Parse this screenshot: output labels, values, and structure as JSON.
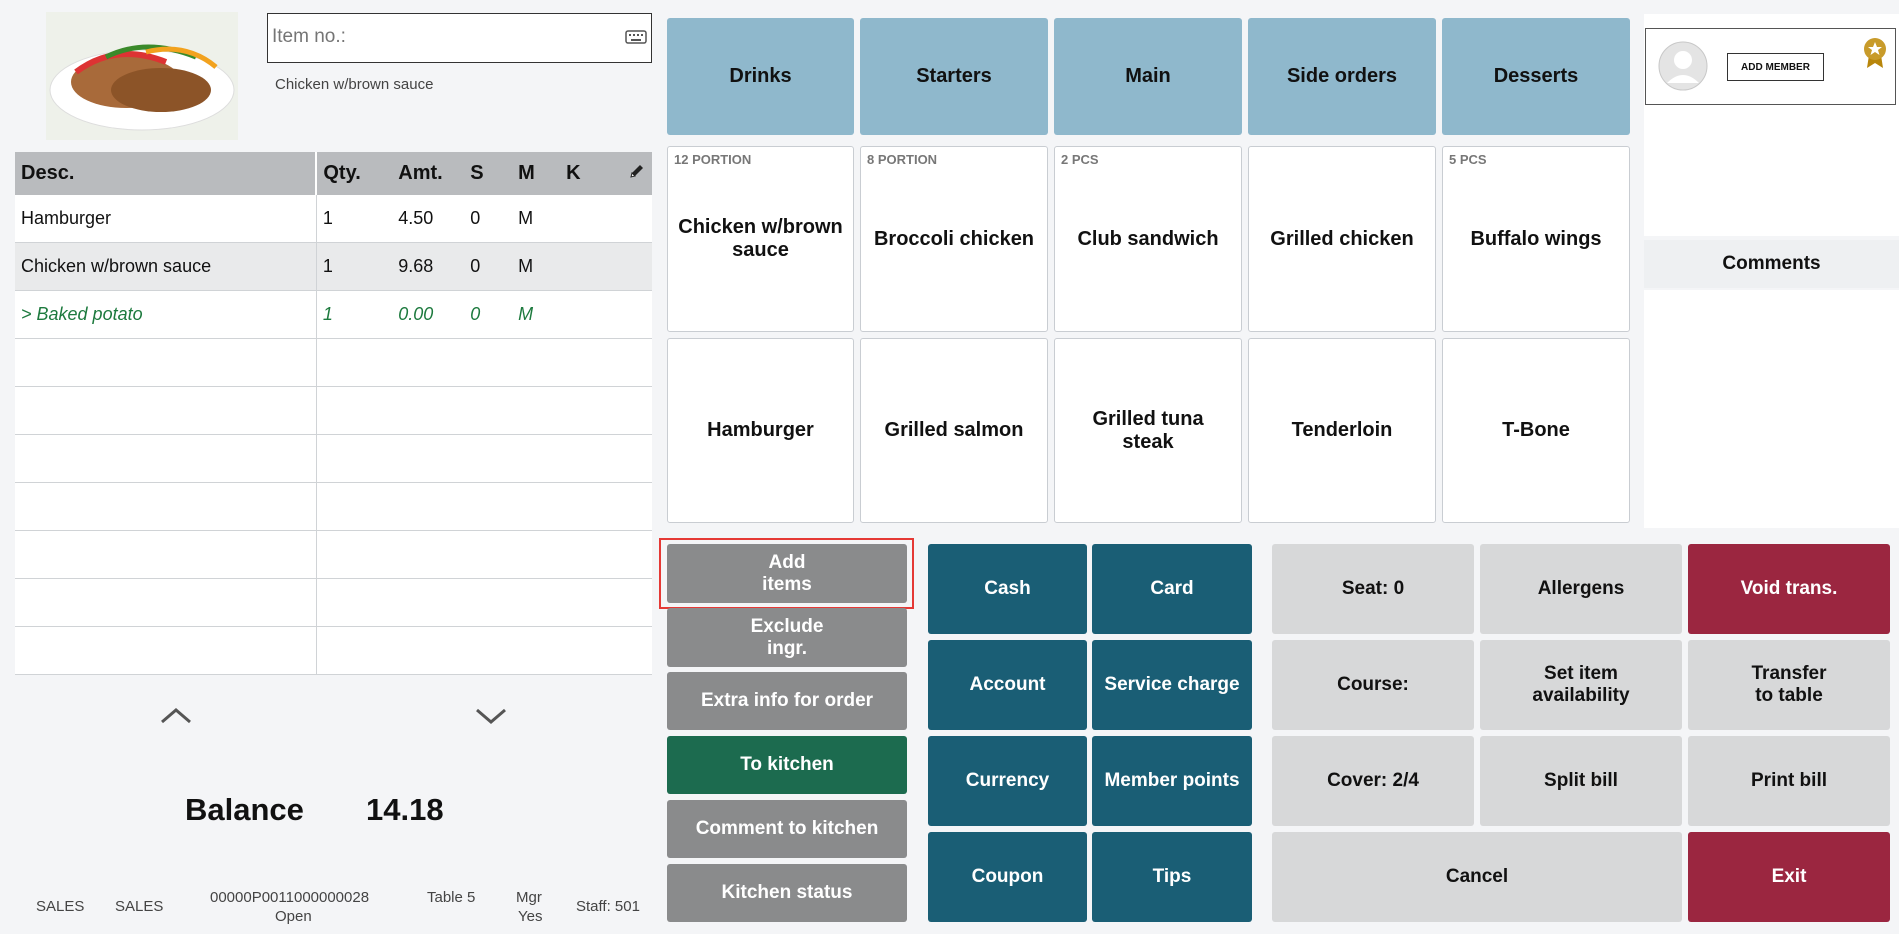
{
  "search": {
    "placeholder": "Item no.:",
    "selected_item": "Chicken w/brown sauce"
  },
  "order_table": {
    "headers": [
      "Desc.",
      "Qty.",
      "Amt.",
      "S",
      "M",
      "K"
    ],
    "rows": [
      {
        "desc": "Hamburger",
        "qty": "1",
        "amt": "4.50",
        "s": "0",
        "m": "M",
        "k": ""
      },
      {
        "desc": "Chicken w/brown sauce",
        "qty": "1",
        "amt": "9.68",
        "s": "0",
        "m": "M",
        "k": ""
      },
      {
        "desc": "> Baked potato",
        "qty": "1",
        "amt": "0.00",
        "s": "0",
        "m": "M",
        "k": ""
      }
    ]
  },
  "balance": {
    "label": "Balance",
    "value": "14.18"
  },
  "status_bar": {
    "mode1": "SALES",
    "mode2": "SALES",
    "trans_no": "00000P0011000000028",
    "trans_state": "Open",
    "table": "Table 5",
    "mgr_label": "Mgr",
    "mgr_value": "Yes",
    "staff": "Staff: 501"
  },
  "categories": [
    "Drinks",
    "Starters",
    "Main",
    "Side orders",
    "Desserts"
  ],
  "products": [
    {
      "tag": "12 PORTION",
      "label": "Chicken w/brown sauce"
    },
    {
      "tag": "8 PORTION",
      "label": "Broccoli chicken"
    },
    {
      "tag": "2 PCS",
      "label": "Club sandwich"
    },
    {
      "tag": "",
      "label": "Grilled chicken"
    },
    {
      "tag": "5 PCS",
      "label": "Buffalo wings"
    },
    {
      "tag": "",
      "label": "Hamburger"
    },
    {
      "tag": "",
      "label": "Grilled salmon"
    },
    {
      "tag": "",
      "label": "Grilled tuna steak"
    },
    {
      "tag": "",
      "label": "Tenderloin"
    },
    {
      "tag": "",
      "label": "T-Bone"
    }
  ],
  "member": {
    "add_label": "ADD MEMBER",
    "comments_label": "Comments"
  },
  "actions_left": [
    "Add\nitems",
    "Exclude\ningr.",
    "Extra info for order",
    "To kitchen",
    "Comment to kitchen",
    "Kitchen status"
  ],
  "payments": [
    "Cash",
    "Card",
    "Account",
    "Service charge",
    "Currency",
    "Member points",
    "Coupon",
    "Tips"
  ],
  "functions": {
    "seat": "Seat: 0",
    "allergens": "Allergens",
    "void": "Void trans.",
    "course": "Course:",
    "availability": "Set item\navailability",
    "transfer": "Transfer\nto table",
    "cover": "Cover: 2/4",
    "split": "Split bill",
    "print": "Print bill",
    "cancel": "Cancel",
    "exit": "Exit"
  },
  "colors": {
    "category": "#8fb8cc",
    "payment": "#1a5e75",
    "kitchen": "#1c6b4f",
    "danger": "#9b2640",
    "highlight": "#e53935"
  }
}
